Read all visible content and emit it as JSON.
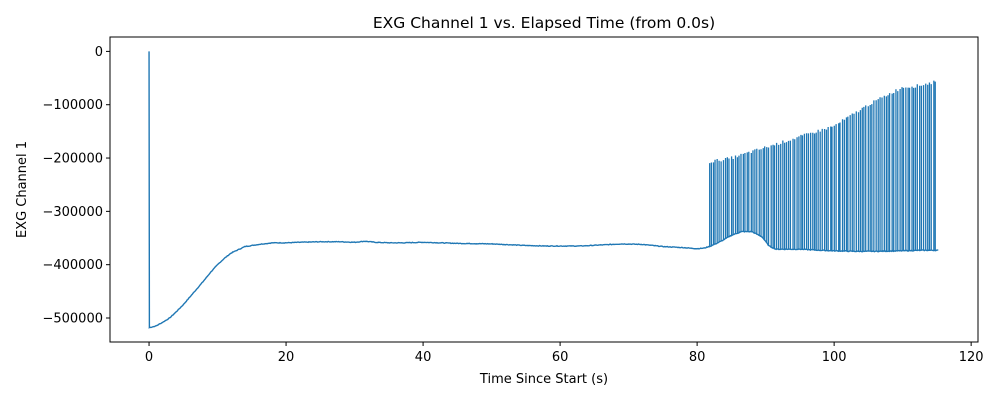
{
  "chart_data": {
    "type": "line",
    "title": "EXG Channel 1 vs. Elapsed Time (from 0.0s)",
    "xlabel": "Time Since Start (s)",
    "ylabel": "EXG Channel 1",
    "xlim": [
      -5.7,
      121
    ],
    "ylim": [
      -545000,
      27000
    ],
    "xticks": [
      0,
      20,
      40,
      60,
      80,
      100,
      120
    ],
    "xtick_labels": [
      "0",
      "20",
      "40",
      "60",
      "80",
      "100",
      "120"
    ],
    "yticks": [
      0,
      -100000,
      -200000,
      -300000,
      -400000,
      -500000
    ],
    "ytick_labels": [
      "0",
      "−100000",
      "−200000",
      "−300000",
      "−400000",
      "−500000"
    ],
    "grid": false,
    "series_color": "#1f77b4",
    "series": [
      {
        "name": "",
        "baseline": [
          [
            0.0,
            0
          ],
          [
            0.05,
            -518000
          ],
          [
            1,
            -515000
          ],
          [
            2,
            -508000
          ],
          [
            3,
            -500000
          ],
          [
            4,
            -488000
          ],
          [
            5,
            -475000
          ],
          [
            6,
            -460000
          ],
          [
            7,
            -445000
          ],
          [
            8,
            -430000
          ],
          [
            9,
            -414000
          ],
          [
            10,
            -400000
          ],
          [
            11,
            -388000
          ],
          [
            12,
            -378000
          ],
          [
            13,
            -372000
          ],
          [
            14,
            -366000
          ],
          [
            16,
            -362000
          ],
          [
            18,
            -359000
          ],
          [
            20,
            -359000
          ],
          [
            22,
            -358000
          ],
          [
            25,
            -357000
          ],
          [
            28,
            -357000
          ],
          [
            30,
            -358000
          ],
          [
            31.5,
            -356000
          ],
          [
            33,
            -358000
          ],
          [
            35,
            -359000
          ],
          [
            37,
            -359000
          ],
          [
            40,
            -358000
          ],
          [
            45,
            -360000
          ],
          [
            50,
            -361000
          ],
          [
            55,
            -364000
          ],
          [
            58,
            -365000
          ],
          [
            60,
            -365000
          ],
          [
            63,
            -365000
          ],
          [
            66,
            -363000
          ],
          [
            69,
            -361000
          ],
          [
            72,
            -362000
          ],
          [
            75,
            -366000
          ],
          [
            78,
            -368000
          ],
          [
            80,
            -370000
          ],
          [
            81,
            -369000
          ],
          [
            82,
            -365000
          ],
          [
            83.5,
            -356000
          ],
          [
            85,
            -345000
          ],
          [
            86.5,
            -338000
          ],
          [
            88,
            -338000
          ],
          [
            89.5,
            -348000
          ],
          [
            90.5,
            -365000
          ],
          [
            91.5,
            -371000
          ],
          [
            95,
            -371000
          ],
          [
            98,
            -373000
          ],
          [
            100,
            -374000
          ],
          [
            103,
            -375000
          ],
          [
            106,
            -375000
          ],
          [
            110,
            -374000
          ],
          [
            113,
            -373000
          ],
          [
            115.2,
            -373000
          ]
        ],
        "spikes": {
          "x_start": 81.8,
          "x_end": 114.8,
          "count": 115,
          "top_envelope": [
            [
              81.8,
              -207000
            ],
            [
              85,
              -200000
            ],
            [
              90,
              -180000
            ],
            [
              95,
              -160000
            ],
            [
              100,
              -140000
            ],
            [
              105,
              -100000
            ],
            [
              108,
              -80000
            ],
            [
              110,
              -67000
            ],
            [
              112,
              -65000
            ],
            [
              114.8,
              -57000
            ]
          ]
        }
      }
    ]
  }
}
